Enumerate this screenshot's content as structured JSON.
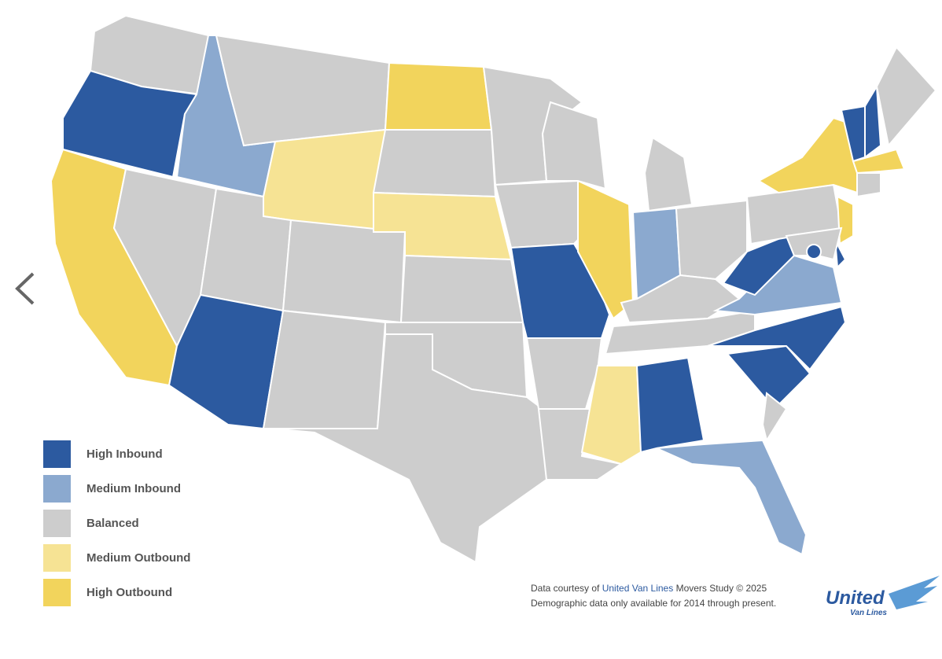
{
  "legend": [
    {
      "label": "High Inbound",
      "color": "#2c5aa0"
    },
    {
      "label": "Medium Inbound",
      "color": "#8ba9cf"
    },
    {
      "label": "Balanced",
      "color": "#cdcdcd"
    },
    {
      "label": "Medium Outbound",
      "color": "#f6e394"
    },
    {
      "label": "High Outbound",
      "color": "#f2d45c"
    }
  ],
  "states": [
    2,
    0,
    4,
    1,
    2,
    2,
    3,
    2,
    0,
    2,
    2,
    4,
    2,
    3,
    2,
    2,
    2,
    2,
    2,
    0,
    2,
    2,
    4,
    2,
    1,
    2,
    2,
    2,
    3,
    0,
    2,
    1,
    0,
    0,
    1,
    0,
    2,
    4,
    4,
    0,
    2,
    0,
    0,
    2,
    2,
    4,
    2,
    0
  ],
  "footer": {
    "line1_before": "Data courtesy of",
    "line1_link": "United Van Lines",
    "line1_after": "Movers Study © 2025",
    "line2": "Demographic data only available for 2014 through present."
  },
  "logo": {
    "name": "United",
    "sub": "Van Lines"
  }
}
